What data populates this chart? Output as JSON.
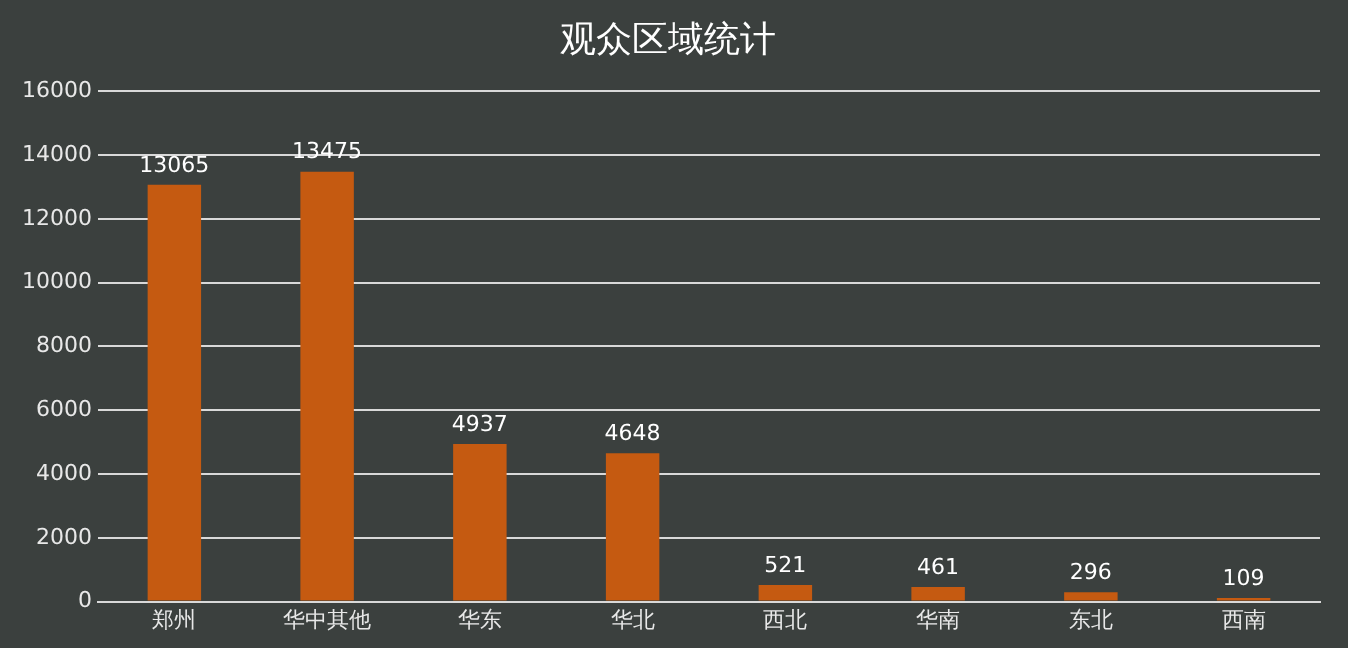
{
  "chart_data": {
    "type": "bar",
    "title": "观众区域统计",
    "categories": [
      "郑州",
      "华中其他",
      "华东",
      "华北",
      "西北",
      "华南",
      "东北",
      "西南"
    ],
    "values": [
      13065,
      13475,
      4937,
      4648,
      521,
      461,
      296,
      109
    ],
    "color": "#c55a11",
    "ylim": [
      0,
      16000
    ],
    "yticks": [
      0,
      2000,
      4000,
      6000,
      8000,
      10000,
      12000,
      14000,
      16000
    ],
    "grid": "y",
    "data_labels": true,
    "legend": false
  }
}
